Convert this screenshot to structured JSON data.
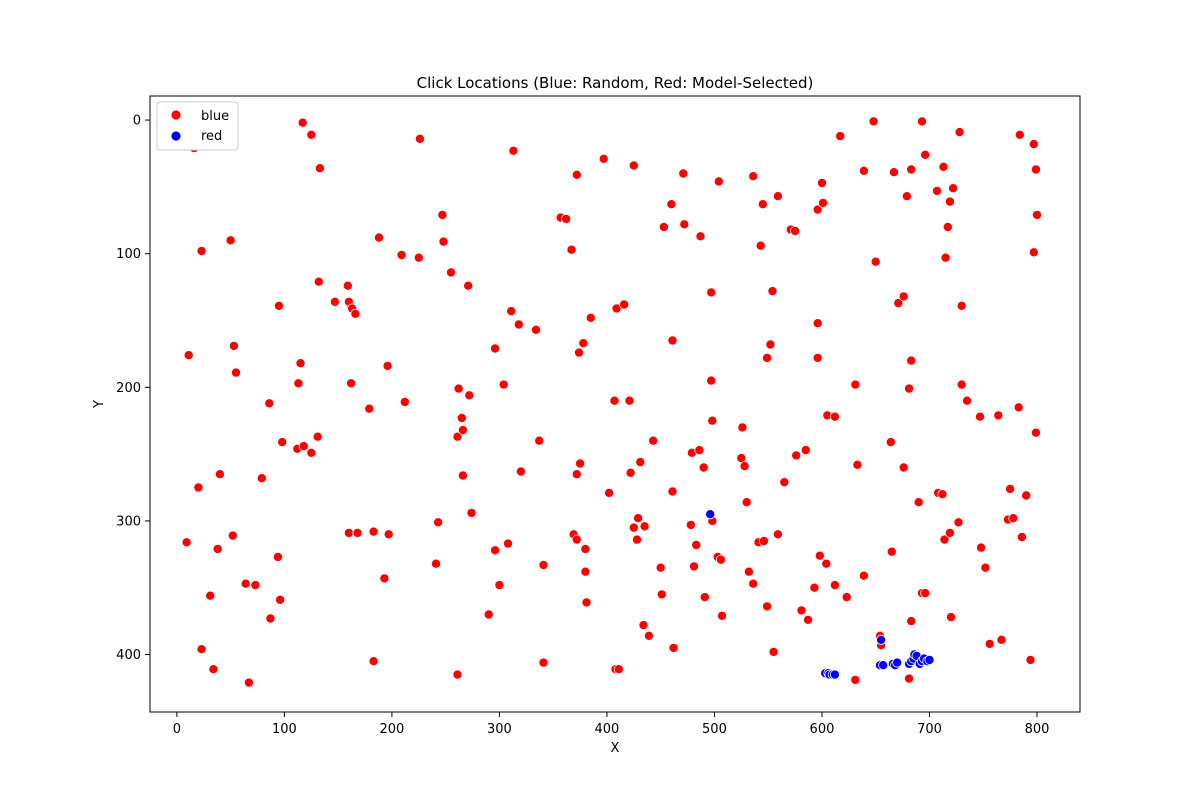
{
  "chart_data": {
    "type": "scatter",
    "title": "Click Locations (Blue: Random, Red: Model-Selected)",
    "xlabel": "X",
    "ylabel": "Y",
    "xlim": [
      -25,
      840
    ],
    "ylim": [
      443,
      -18
    ],
    "y_inverted": true,
    "xticks": [
      0,
      100,
      200,
      300,
      400,
      500,
      600,
      700,
      800
    ],
    "yticks": [
      0,
      100,
      200,
      300,
      400
    ],
    "grid": false,
    "legend_position": "top-left",
    "legend": [
      {
        "label": "blue",
        "color": "#ff0000"
      },
      {
        "label": "red",
        "color": "#0000ff"
      }
    ],
    "series": [
      {
        "name": "blue",
        "color": "#ff0000",
        "points": [
          [
            16,
            21
          ],
          [
            117,
            2
          ],
          [
            125,
            11
          ],
          [
            133,
            36
          ],
          [
            226,
            14
          ],
          [
            247,
            71
          ],
          [
            248,
            91
          ],
          [
            255,
            114
          ],
          [
            271,
            124
          ],
          [
            313,
            23
          ],
          [
            357,
            73
          ],
          [
            362,
            74
          ],
          [
            367,
            97
          ],
          [
            372,
            41
          ],
          [
            374,
            174
          ],
          [
            378,
            167
          ],
          [
            385,
            148
          ],
          [
            397,
            29
          ],
          [
            409,
            141
          ],
          [
            416,
            138
          ],
          [
            425,
            34
          ],
          [
            453,
            80
          ],
          [
            460,
            63
          ],
          [
            461,
            165
          ],
          [
            471,
            40
          ],
          [
            472,
            78
          ],
          [
            487,
            87
          ],
          [
            497,
            129
          ],
          [
            504,
            46
          ],
          [
            536,
            42
          ],
          [
            545,
            63
          ],
          [
            559,
            57
          ],
          [
            571,
            82
          ],
          [
            575,
            83
          ],
          [
            596,
            67
          ],
          [
            600,
            47
          ],
          [
            601,
            62
          ],
          [
            543,
            94
          ],
          [
            554,
            128
          ],
          [
            552,
            168
          ],
          [
            549,
            178
          ],
          [
            596,
            152
          ],
          [
            596,
            178
          ],
          [
            617,
            12
          ],
          [
            639,
            38
          ],
          [
            648,
            1
          ],
          [
            650,
            106
          ],
          [
            667,
            39
          ],
          [
            671,
            137
          ],
          [
            676,
            132
          ],
          [
            679,
            57
          ],
          [
            683,
            37
          ],
          [
            683,
            180
          ],
          [
            681,
            201
          ],
          [
            693,
            1
          ],
          [
            696,
            26
          ],
          [
            707,
            53
          ],
          [
            713,
            35
          ],
          [
            717,
            80
          ],
          [
            719,
            61
          ],
          [
            722,
            51
          ],
          [
            728,
            9
          ],
          [
            715,
            103
          ],
          [
            730,
            139
          ],
          [
            797,
            18
          ],
          [
            799,
            37
          ],
          [
            800,
            71
          ],
          [
            797,
            99
          ],
          [
            784,
            11
          ],
          [
            23,
            98
          ],
          [
            50,
            90
          ],
          [
            53,
            169
          ],
          [
            55,
            189
          ],
          [
            11,
            176
          ],
          [
            20,
            275
          ],
          [
            40,
            265
          ],
          [
            38,
            321
          ],
          [
            52,
            311
          ],
          [
            64,
            347
          ],
          [
            73,
            348
          ],
          [
            79,
            268
          ],
          [
            86,
            212
          ],
          [
            87,
            373
          ],
          [
            95,
            139
          ],
          [
            94,
            327
          ],
          [
            96,
            359
          ],
          [
            98,
            241
          ],
          [
            112,
            246
          ],
          [
            113,
            197
          ],
          [
            115,
            182
          ],
          [
            118,
            244
          ],
          [
            125,
            249
          ],
          [
            131,
            237
          ],
          [
            132,
            121
          ],
          [
            147,
            136
          ],
          [
            159,
            124
          ],
          [
            160,
            136
          ],
          [
            163,
            141
          ],
          [
            166,
            145
          ],
          [
            162,
            197
          ],
          [
            179,
            216
          ],
          [
            188,
            88
          ],
          [
            196,
            184
          ],
          [
            209,
            101
          ],
          [
            225,
            103
          ],
          [
            212,
            211
          ],
          [
            160,
            309
          ],
          [
            168,
            309
          ],
          [
            183,
            308
          ],
          [
            193,
            343
          ],
          [
            197,
            310
          ],
          [
            183,
            405
          ],
          [
            9,
            316
          ],
          [
            31,
            356
          ],
          [
            34,
            411
          ],
          [
            23,
            396
          ],
          [
            67,
            421
          ],
          [
            243,
            301
          ],
          [
            241,
            332
          ],
          [
            261,
            237
          ],
          [
            262,
            201
          ],
          [
            265,
            223
          ],
          [
            266,
            232
          ],
          [
            266,
            266
          ],
          [
            272,
            206
          ],
          [
            274,
            294
          ],
          [
            261,
            415
          ],
          [
            290,
            370
          ],
          [
            296,
            171
          ],
          [
            304,
            198
          ],
          [
            296,
            322
          ],
          [
            300,
            348
          ],
          [
            308,
            317
          ],
          [
            311,
            143
          ],
          [
            318,
            153
          ],
          [
            320,
            263
          ],
          [
            334,
            157
          ],
          [
            337,
            240
          ],
          [
            341,
            333
          ],
          [
            341,
            406
          ],
          [
            369,
            310
          ],
          [
            372,
            314
          ],
          [
            372,
            265
          ],
          [
            375,
            257
          ],
          [
            380,
            321
          ],
          [
            380,
            338
          ],
          [
            381,
            361
          ],
          [
            402,
            279
          ],
          [
            407,
            210
          ],
          [
            421,
            210
          ],
          [
            422,
            264
          ],
          [
            425,
            305
          ],
          [
            428,
            314
          ],
          [
            429,
            298
          ],
          [
            431,
            256
          ],
          [
            435,
            304
          ],
          [
            434,
            378
          ],
          [
            439,
            386
          ],
          [
            443,
            240
          ],
          [
            450,
            335
          ],
          [
            451,
            355
          ],
          [
            461,
            278
          ],
          [
            462,
            395
          ],
          [
            478,
            303
          ],
          [
            479,
            249
          ],
          [
            481,
            334
          ],
          [
            483,
            318
          ],
          [
            486,
            247
          ],
          [
            490,
            260
          ],
          [
            491,
            357
          ],
          [
            497,
            195
          ],
          [
            498,
            225
          ],
          [
            498,
            300
          ],
          [
            503,
            327
          ],
          [
            506,
            329
          ],
          [
            507,
            371
          ],
          [
            526,
            230
          ],
          [
            525,
            253
          ],
          [
            528,
            259
          ],
          [
            530,
            286
          ],
          [
            532,
            338
          ],
          [
            536,
            347
          ],
          [
            541,
            316
          ],
          [
            546,
            315
          ],
          [
            549,
            364
          ],
          [
            555,
            398
          ],
          [
            559,
            310
          ],
          [
            565,
            271
          ],
          [
            576,
            251
          ],
          [
            581,
            367
          ],
          [
            585,
            247
          ],
          [
            587,
            374
          ],
          [
            593,
            350
          ],
          [
            598,
            326
          ],
          [
            604,
            332
          ],
          [
            605,
            221
          ],
          [
            612,
            222
          ],
          [
            612,
            348
          ],
          [
            623,
            357
          ],
          [
            631,
            198
          ],
          [
            633,
            258
          ],
          [
            639,
            341
          ],
          [
            664,
            241
          ],
          [
            665,
            323
          ],
          [
            676,
            260
          ],
          [
            683,
            375
          ],
          [
            690,
            286
          ],
          [
            693,
            354
          ],
          [
            696,
            354
          ],
          [
            708,
            279
          ],
          [
            712,
            280
          ],
          [
            714,
            314
          ],
          [
            719,
            309
          ],
          [
            720,
            372
          ],
          [
            727,
            301
          ],
          [
            730,
            198
          ],
          [
            735,
            210
          ],
          [
            747,
            222
          ],
          [
            748,
            320
          ],
          [
            752,
            335
          ],
          [
            764,
            221
          ],
          [
            773,
            299
          ],
          [
            775,
            276
          ],
          [
            778,
            298
          ],
          [
            783,
            215
          ],
          [
            786,
            312
          ],
          [
            790,
            281
          ],
          [
            799,
            234
          ],
          [
            756,
            392
          ],
          [
            767,
            389
          ],
          [
            794,
            404
          ],
          [
            408,
            411
          ],
          [
            411,
            411
          ],
          [
            631,
            419
          ],
          [
            654,
            386
          ],
          [
            655,
            393
          ],
          [
            681,
            418
          ]
        ]
      },
      {
        "name": "red",
        "color": "#0000ff",
        "points": [
          [
            496,
            295
          ],
          [
            655,
            389
          ],
          [
            603,
            414
          ],
          [
            606,
            414
          ],
          [
            607,
            415
          ],
          [
            610,
            415
          ],
          [
            612,
            415
          ],
          [
            654,
            408
          ],
          [
            657,
            408
          ],
          [
            666,
            407
          ],
          [
            668,
            408
          ],
          [
            670,
            406
          ],
          [
            681,
            407
          ],
          [
            683,
            405
          ],
          [
            685,
            403
          ],
          [
            686,
            400
          ],
          [
            688,
            401
          ],
          [
            691,
            407
          ],
          [
            693,
            405
          ],
          [
            695,
            403
          ],
          [
            698,
            405
          ],
          [
            700,
            404
          ]
        ]
      }
    ]
  }
}
